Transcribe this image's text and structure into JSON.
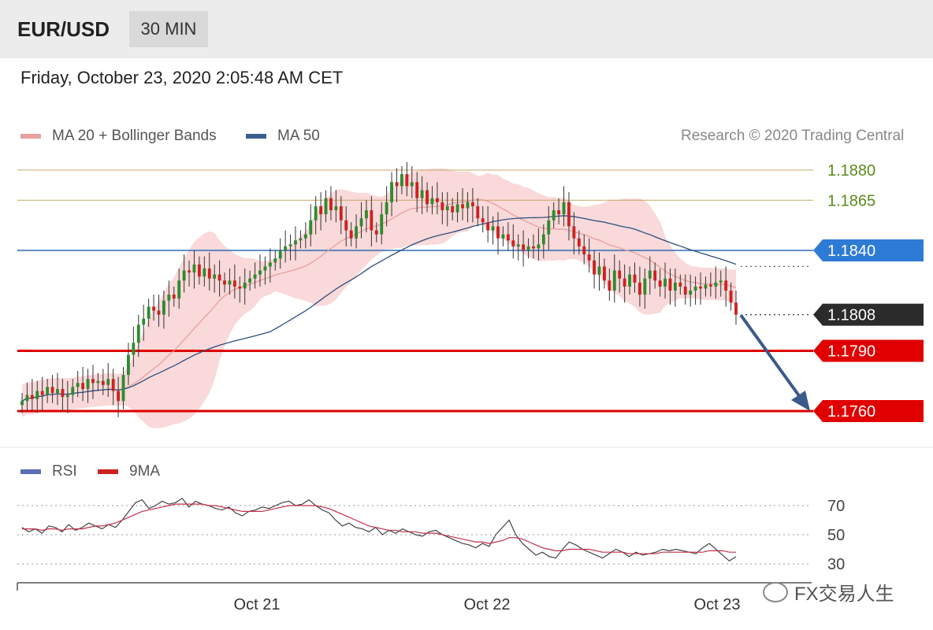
{
  "header": {
    "symbol": "EUR/USD",
    "timeframe": "30 MIN"
  },
  "datetime": "Friday, October 23, 2020 2:05:48 AM CET",
  "legend": {
    "items": [
      {
        "label": "MA 20 + Bollinger Bands",
        "color": "#e8a0a0"
      },
      {
        "label": "MA 50",
        "color": "#3a5f8f"
      }
    ]
  },
  "copyright": "Research © 2020 Trading Central",
  "watermark": "FX交易人生",
  "rsi_legend": {
    "items": [
      {
        "label": "RSI",
        "color": "#5b6fb5"
      },
      {
        "label": "9MA",
        "color": "#cc2222"
      }
    ]
  },
  "chart_data": [
    {
      "type": "candlestick",
      "title": "",
      "ylim": [
        1.1735,
        1.1895
      ],
      "x_labels": [
        "Oct 21",
        "Oct 22",
        "Oct 23"
      ],
      "price_levels": [
        {
          "value": 1.188,
          "label": "1.1880",
          "style": "thin-olive"
        },
        {
          "value": 1.1865,
          "label": "1.1865",
          "style": "thin-olive"
        },
        {
          "value": 1.184,
          "label": "1.1840",
          "style": "blue"
        },
        {
          "value": 1.1808,
          "label": "1.1808",
          "style": "current"
        },
        {
          "value": 1.179,
          "label": "1.1790",
          "style": "red"
        },
        {
          "value": 1.176,
          "label": "1.1760",
          "style": "red"
        }
      ],
      "colors": {
        "up": "#2e8b2e",
        "down": "#cc2222",
        "band": "#f7c9c9",
        "ma20": "#e89a9a",
        "ma50": "#2d4f80",
        "arrow": "#3a5a8a"
      },
      "close": [
        1.1765,
        1.1768,
        1.1766,
        1.177,
        1.1768,
        1.1772,
        1.1769,
        1.1771,
        1.1767,
        1.1768,
        1.1772,
        1.1774,
        1.1771,
        1.1776,
        1.1774,
        1.1775,
        1.1773,
        1.1776,
        1.177,
        1.1765,
        1.1778,
        1.1788,
        1.1794,
        1.1803,
        1.1806,
        1.1812,
        1.181,
        1.1808,
        1.1815,
        1.1818,
        1.1816,
        1.1825,
        1.183,
        1.1829,
        1.1833,
        1.1827,
        1.1831,
        1.1826,
        1.1828,
        1.1825,
        1.1823,
        1.1825,
        1.1822,
        1.1821,
        1.1824,
        1.1826,
        1.1828,
        1.183,
        1.1832,
        1.1834,
        1.1836,
        1.184,
        1.1842,
        1.1843,
        1.1845,
        1.1846,
        1.1848,
        1.1855,
        1.1862,
        1.1858,
        1.1866,
        1.186,
        1.1862,
        1.1855,
        1.185,
        1.1846,
        1.1852,
        1.1856,
        1.186,
        1.185,
        1.1848,
        1.1858,
        1.1864,
        1.1874,
        1.1872,
        1.1878,
        1.1872,
        1.1874,
        1.1866,
        1.187,
        1.1863,
        1.1866,
        1.1864,
        1.186,
        1.1862,
        1.1859,
        1.1863,
        1.1861,
        1.1864,
        1.1862,
        1.1856,
        1.1854,
        1.185,
        1.1852,
        1.1846,
        1.1848,
        1.1845,
        1.1842,
        1.1843,
        1.184,
        1.1842,
        1.1841,
        1.1843,
        1.1848,
        1.1855,
        1.186,
        1.1858,
        1.1864,
        1.1852,
        1.1846,
        1.1842,
        1.1838,
        1.1835,
        1.1828,
        1.1832,
        1.1825,
        1.182,
        1.183,
        1.1826,
        1.1822,
        1.1828,
        1.1824,
        1.1818,
        1.1826,
        1.183,
        1.1825,
        1.1822,
        1.1826,
        1.182,
        1.1824,
        1.1822,
        1.1818,
        1.182,
        1.1822,
        1.1821,
        1.1823,
        1.1822,
        1.1824,
        1.1825,
        1.182,
        1.1814,
        1.1808
      ]
    },
    {
      "type": "line",
      "title": "",
      "ylim": [
        25,
        85
      ],
      "reference_lines": [
        70,
        50,
        30
      ],
      "y_tick_labels": [
        "70",
        "50",
        "30"
      ],
      "series": [
        {
          "name": "RSI",
          "color": "#444444",
          "values": [
            55,
            52,
            54,
            51,
            56,
            55,
            52,
            57,
            53,
            55,
            58,
            56,
            54,
            57,
            55,
            60,
            66,
            72,
            74,
            68,
            70,
            73,
            71,
            72,
            75,
            69,
            73,
            71,
            70,
            68,
            67,
            69,
            65,
            63,
            66,
            67,
            69,
            68,
            70,
            72,
            73,
            70,
            71,
            74,
            70,
            67,
            65,
            60,
            56,
            58,
            55,
            54,
            52,
            55,
            50,
            53,
            51,
            54,
            52,
            50,
            49,
            52,
            53,
            50,
            48,
            46,
            44,
            43,
            41,
            44,
            42,
            50,
            55,
            60,
            50,
            44,
            40,
            36,
            38,
            35,
            34,
            40,
            45,
            43,
            40,
            38,
            36,
            34,
            37,
            40,
            38,
            35,
            38,
            36,
            37,
            38,
            40,
            39,
            40,
            39,
            38,
            37,
            41,
            44,
            40,
            36,
            32,
            35
          ]
        },
        {
          "name": "9MA",
          "color": "#c2304a",
          "values": [
            54,
            54,
            54,
            53,
            54,
            54,
            53,
            54,
            54,
            54,
            55,
            56,
            56,
            57,
            58,
            60,
            62,
            64,
            66,
            67,
            68,
            69,
            70,
            71,
            71,
            71,
            71,
            71,
            70,
            70,
            69,
            68,
            67,
            66,
            66,
            66,
            66,
            67,
            68,
            69,
            70,
            70,
            70,
            70,
            70,
            69,
            68,
            66,
            64,
            62,
            60,
            58,
            56,
            55,
            54,
            53,
            53,
            52,
            52,
            52,
            51,
            51,
            51,
            50,
            49,
            48,
            47,
            46,
            45,
            45,
            44,
            45,
            46,
            48,
            48,
            47,
            45,
            43,
            41,
            40,
            39,
            39,
            40,
            40,
            40,
            40,
            39,
            38,
            38,
            38,
            38,
            37,
            37,
            37,
            37,
            37,
            38,
            38,
            38,
            38,
            38,
            38,
            38,
            39,
            39,
            39,
            38,
            38
          ]
        }
      ]
    }
  ]
}
